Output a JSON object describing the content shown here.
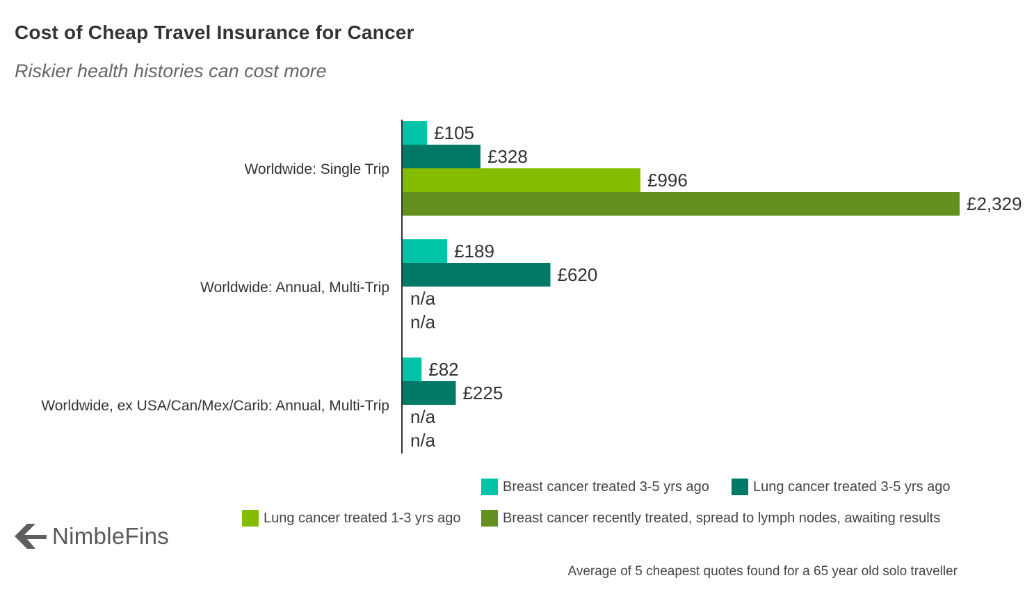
{
  "header": {
    "title": "Cost of Cheap Travel Insurance for Cancer",
    "subtitle": "Riskier health histories can cost more"
  },
  "chart_data": {
    "type": "bar",
    "orientation": "horizontal",
    "title": "Cost of Cheap Travel Insurance for Cancer",
    "subtitle": "Riskier health histories can cost more",
    "categories": [
      "Worldwide: Single Trip",
      "Worldwide: Annual, Multi-Trip",
      "Worldwide, ex USA/Can/Mex/Carib: Annual, Multi-Trip"
    ],
    "series": [
      {
        "name": "Breast cancer treated 3-5 yrs ago",
        "color": "#00c4a8",
        "values": [
          105,
          189,
          82
        ],
        "labels": [
          "£105",
          "£189",
          "£82"
        ]
      },
      {
        "name": "Lung cancer treated 3-5 yrs ago",
        "color": "#007a66",
        "values": [
          328,
          620,
          225
        ],
        "labels": [
          "£328",
          "£620",
          "£225"
        ]
      },
      {
        "name": "Lung cancer treated 1-3 yrs ago",
        "color": "#84bd00",
        "values": [
          996,
          null,
          null
        ],
        "labels": [
          "£996",
          "n/a",
          "n/a"
        ]
      },
      {
        "name": "Breast cancer recently treated, spread to lymph nodes, awaiting results",
        "color": "#64901f",
        "values": [
          2329,
          null,
          null
        ],
        "labels": [
          "£2,329",
          "n/a",
          "n/a"
        ]
      }
    ],
    "xlim": [
      0,
      2329
    ],
    "xlabel": "",
    "ylabel": "",
    "grid": false,
    "legend_position": "bottom-right"
  },
  "legend": {
    "items": [
      {
        "label": "Breast cancer treated 3-5 yrs ago",
        "color": "#00c4a8"
      },
      {
        "label": "Lung cancer treated 3-5 yrs ago",
        "color": "#007a66"
      },
      {
        "label": "Lung cancer treated 1-3 yrs ago",
        "color": "#84bd00"
      },
      {
        "label": "Breast cancer recently treated, spread to lymph nodes, awaiting results",
        "color": "#64901f"
      }
    ]
  },
  "logo": {
    "name": "NimbleFins",
    "icon": "arrow-left-logo-icon"
  },
  "footnote": "Average of 5 cheapest quotes found for a 65 year old solo traveller"
}
